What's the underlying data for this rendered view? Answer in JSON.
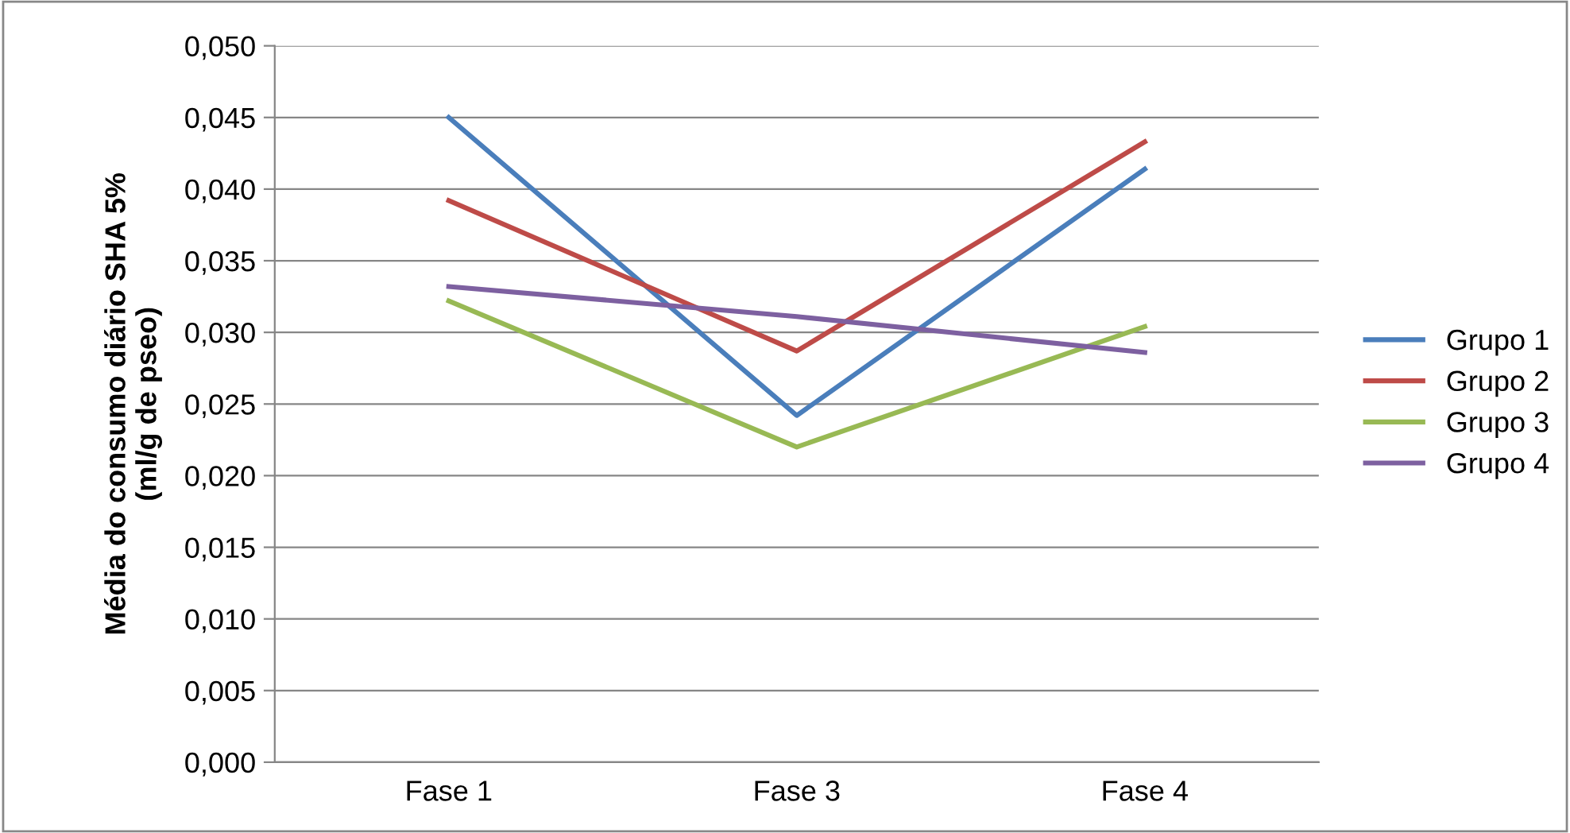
{
  "chart_data": {
    "type": "line",
    "ylabel": "Média do consumo diário SHA 5%\n(ml/g de pseo)",
    "categories": [
      "Fase 1",
      "Fase 3",
      "Fase 4"
    ],
    "series": [
      {
        "name": "Grupo 1",
        "color": "#4a7ebb",
        "values": [
          0.045,
          0.0242,
          0.0414
        ]
      },
      {
        "name": "Grupo 2",
        "color": "#be4b48",
        "values": [
          0.0392,
          0.0287,
          0.0433
        ]
      },
      {
        "name": "Grupo 3",
        "color": "#98b954",
        "values": [
          0.0322,
          0.022,
          0.0304
        ]
      },
      {
        "name": "Grupo 4",
        "color": "#7d60a0",
        "values": [
          0.0332,
          0.0311,
          0.0286
        ]
      }
    ],
    "ylim": [
      0,
      0.05
    ],
    "yticks": [
      {
        "value": 0,
        "label": "0,000"
      },
      {
        "value": 0.005,
        "label": "0,005"
      },
      {
        "value": 0.01,
        "label": "0,010"
      },
      {
        "value": 0.015,
        "label": "0,015"
      },
      {
        "value": 0.02,
        "label": "0,020"
      },
      {
        "value": 0.025,
        "label": "0,025"
      },
      {
        "value": 0.03,
        "label": "0,030"
      },
      {
        "value": 0.035,
        "label": "0,035"
      },
      {
        "value": 0.04,
        "label": "0,040"
      },
      {
        "value": 0.045,
        "label": "0,045"
      },
      {
        "value": 0.05,
        "label": "0,050"
      }
    ],
    "grid": "y",
    "legend": "right",
    "marker": "none",
    "line_style": "solid"
  }
}
